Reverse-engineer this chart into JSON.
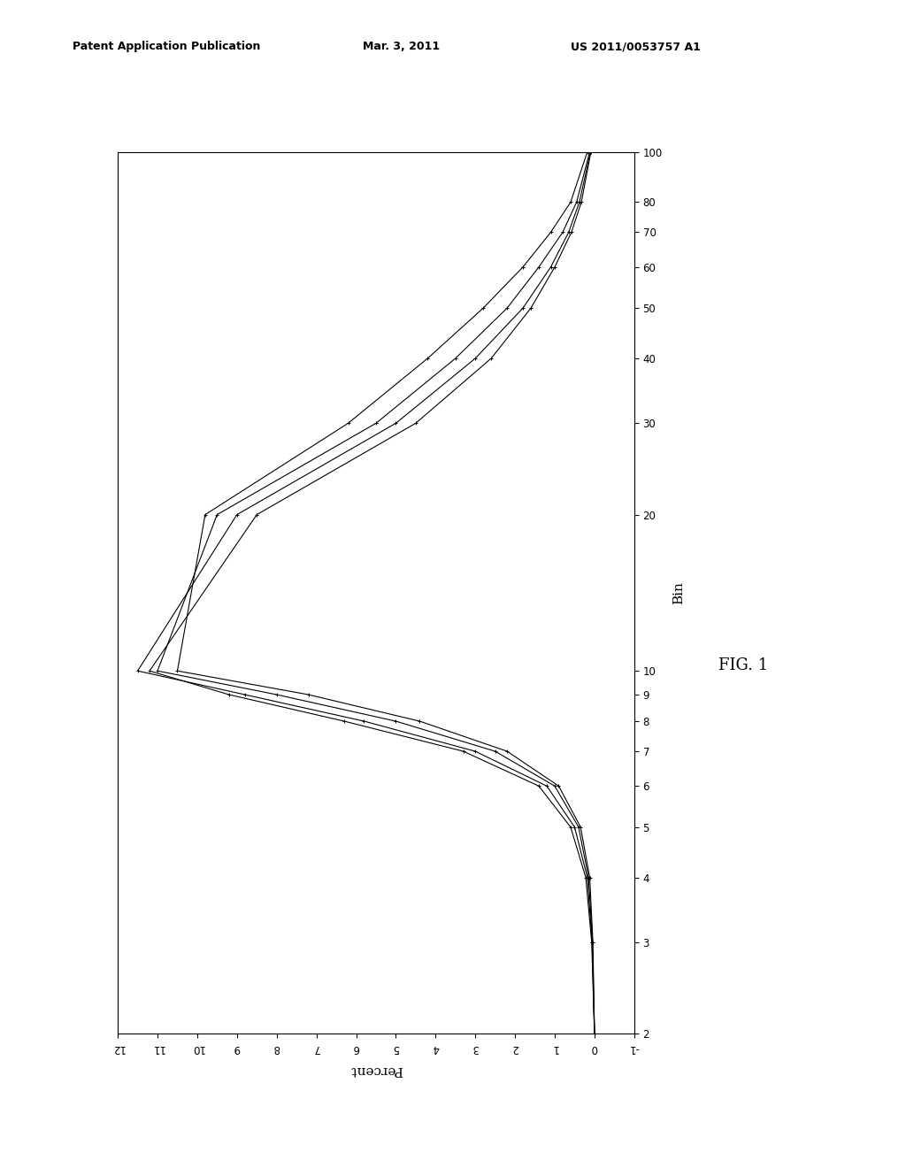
{
  "title_text": "FIG. 1",
  "bin_label": "Bin",
  "percent_label": "Percent",
  "header_left": "Patent Application Publication",
  "header_center": "Mar. 3, 2011",
  "header_right": "US 2011/0053757 A1",
  "bin_ticks": [
    2,
    3,
    4,
    5,
    6,
    7,
    8,
    9,
    10,
    20,
    30,
    40,
    50,
    60,
    70,
    80,
    100
  ],
  "percent_ticks": [
    -1,
    0,
    1,
    2,
    3,
    4,
    5,
    6,
    7,
    8,
    9,
    10,
    11,
    12
  ],
  "background_color": "#ffffff",
  "line_color": "#000000",
  "series": [
    {
      "bin": [
        2,
        3,
        4,
        5,
        6,
        7,
        8,
        9,
        10,
        20,
        30,
        40,
        50,
        60,
        70,
        80,
        100
      ],
      "pct": [
        0.0,
        0.05,
        0.15,
        0.4,
        1.0,
        2.5,
        5.0,
        8.0,
        11.0,
        9.5,
        5.5,
        3.5,
        2.2,
        1.4,
        0.8,
        0.45,
        0.12
      ]
    },
    {
      "bin": [
        2,
        3,
        4,
        5,
        6,
        7,
        8,
        9,
        10,
        20,
        30,
        40,
        50,
        60,
        70,
        80,
        100
      ],
      "pct": [
        0.0,
        0.06,
        0.18,
        0.5,
        1.2,
        3.0,
        5.8,
        8.8,
        11.5,
        9.0,
        5.0,
        3.0,
        1.8,
        1.1,
        0.65,
        0.38,
        0.1
      ]
    },
    {
      "bin": [
        2,
        3,
        4,
        5,
        6,
        7,
        8,
        9,
        10,
        20,
        30,
        40,
        50,
        60,
        70,
        80,
        100
      ],
      "pct": [
        0.0,
        0.04,
        0.12,
        0.35,
        0.9,
        2.2,
        4.4,
        7.2,
        10.5,
        9.8,
        6.2,
        4.2,
        2.8,
        1.8,
        1.1,
        0.6,
        0.18
      ]
    },
    {
      "bin": [
        2,
        3,
        4,
        5,
        6,
        7,
        8,
        9,
        10,
        20,
        30,
        40,
        50,
        60,
        70,
        80,
        100
      ],
      "pct": [
        0.0,
        0.07,
        0.22,
        0.6,
        1.4,
        3.3,
        6.3,
        9.2,
        11.2,
        8.5,
        4.5,
        2.6,
        1.6,
        1.0,
        0.58,
        0.33,
        0.09
      ]
    }
  ]
}
